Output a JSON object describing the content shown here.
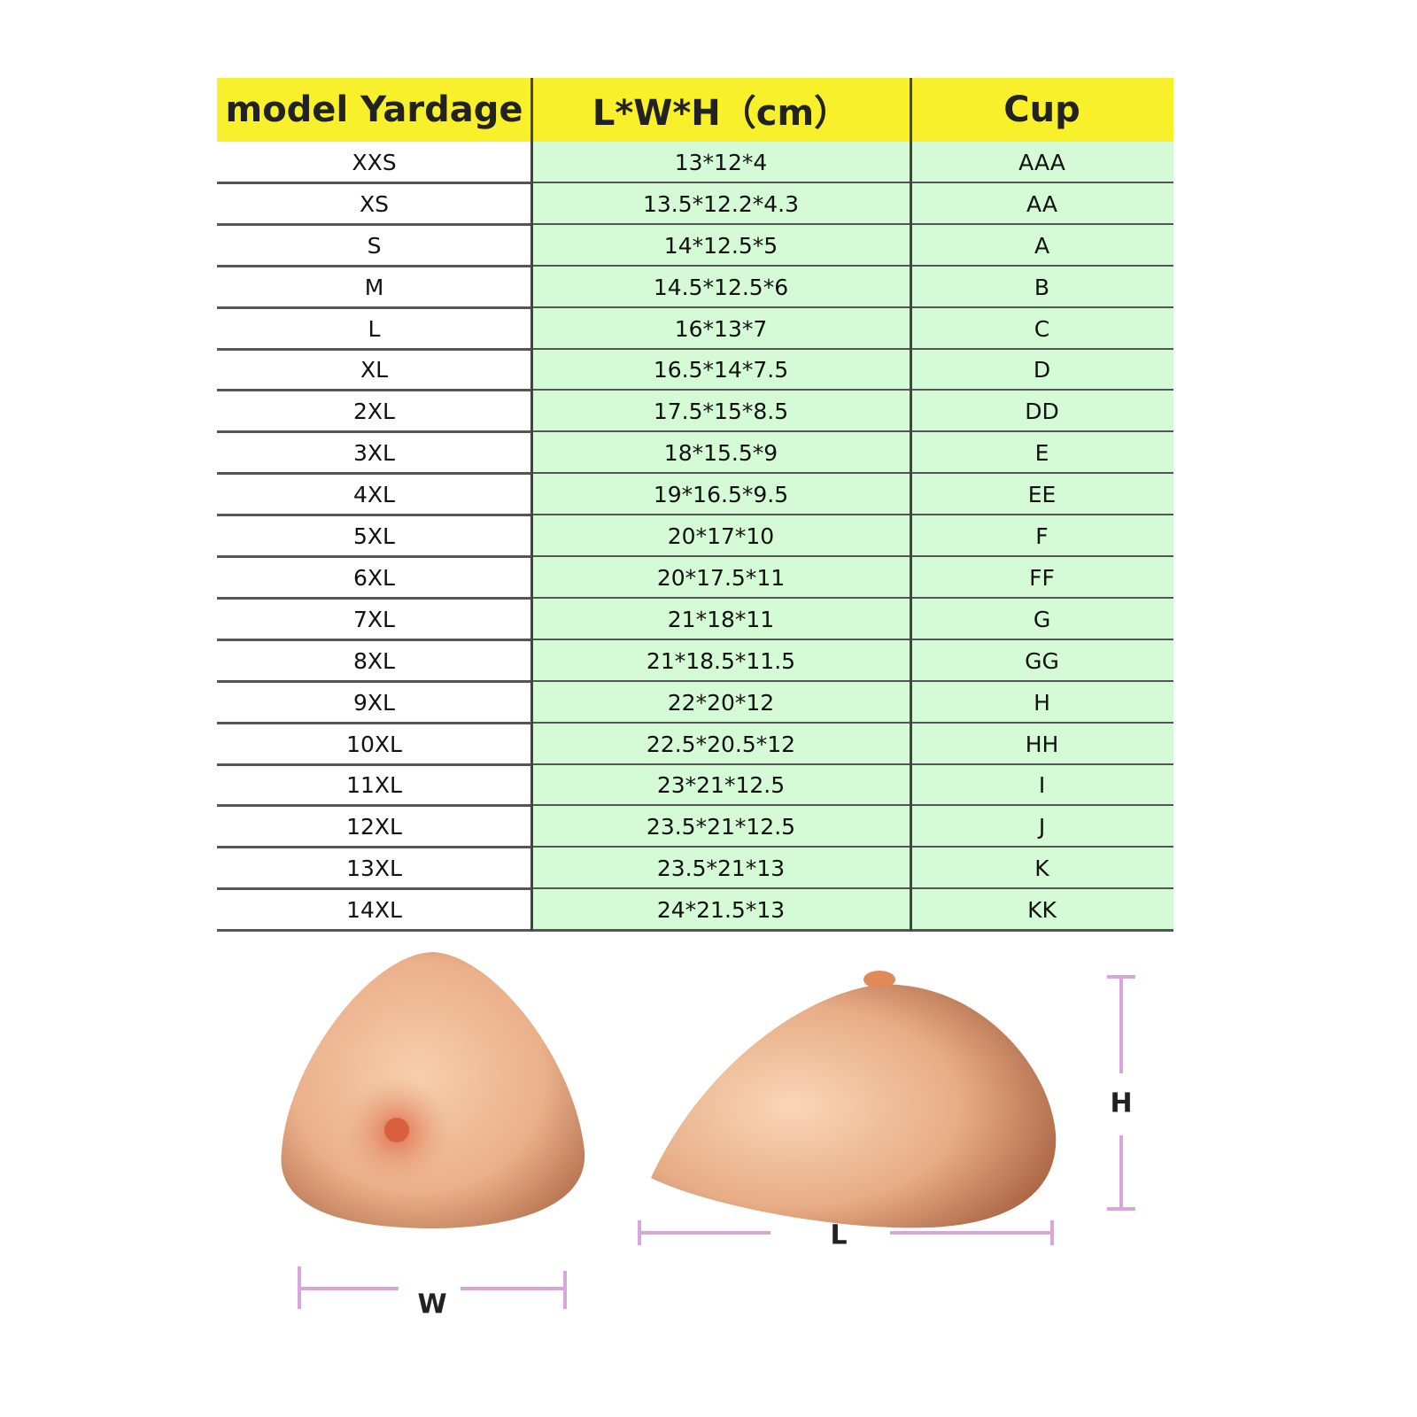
{
  "table": {
    "header": [
      "model Yardage",
      "L*W*H（cm）",
      "Cup"
    ],
    "rows": [
      [
        "XXS",
        "13*12*4",
        "AAA"
      ],
      [
        "XS",
        "13.5*12.2*4.3",
        "AA"
      ],
      [
        "S",
        "14*12.5*5",
        "A"
      ],
      [
        "M",
        "14.5*12.5*6",
        "B"
      ],
      [
        "L",
        "16*13*7",
        "C"
      ],
      [
        "XL",
        "16.5*14*7.5",
        "D"
      ],
      [
        "2XL",
        "17.5*15*8.5",
        "DD"
      ],
      [
        "3XL",
        "18*15.5*9",
        "E"
      ],
      [
        "4XL",
        "19*16.5*9.5",
        "EE"
      ],
      [
        "5XL",
        "20*17*10",
        "F"
      ],
      [
        "6XL",
        "20*17.5*11",
        "FF"
      ],
      [
        "7XL",
        "21*18*11",
        "G"
      ],
      [
        "8XL",
        "21*18.5*11.5",
        "GG"
      ],
      [
        "9XL",
        "22*20*12",
        "H"
      ],
      [
        "10XL",
        "22.5*20.5*12",
        "HH"
      ],
      [
        "11XL",
        "23*21*12.5",
        "I"
      ],
      [
        "12XL",
        "23.5*21*12.5",
        "J"
      ],
      [
        "13XL",
        "23.5*21*13",
        "K"
      ],
      [
        "14XL",
        "24*21.5*13",
        "KK"
      ]
    ]
  },
  "dimensions": {
    "width": "W",
    "length": "L",
    "height": "H"
  }
}
